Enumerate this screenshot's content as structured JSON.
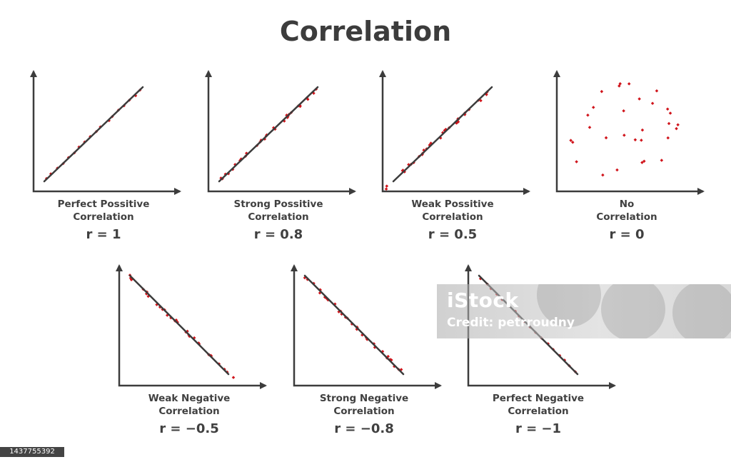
{
  "title": "Correlation",
  "chart_data": [
    {
      "type": "scatter",
      "title": "Perfect Possitive Correlation",
      "caption": [
        "Perfect Possitive",
        "Correlation"
      ],
      "r_label": "r = 1",
      "r": 1
    },
    {
      "type": "scatter",
      "title": "Strong Possitive Correlation",
      "caption": [
        "Strong Possitive",
        "Correlation"
      ],
      "r_label": "r = 0.8",
      "r": 0.8
    },
    {
      "type": "scatter",
      "title": "Weak Possitive Correlation",
      "caption": [
        "Weak Possitive",
        "Correlation"
      ],
      "r_label": "r = 0.5",
      "r": 0.5
    },
    {
      "type": "scatter",
      "title": "No Correlation",
      "caption": [
        "No",
        "Correlation"
      ],
      "r_label": "r = 0",
      "r": 0
    },
    {
      "type": "scatter",
      "title": "Weak Negative Correlation",
      "caption": [
        "Weak Negative",
        "Correlation"
      ],
      "r_label": "r = −0.5",
      "r": -0.5
    },
    {
      "type": "scatter",
      "title": "Strong Negative Correlation",
      "caption": [
        "Strong Negative",
        "Correlation"
      ],
      "r_label": "r = −0.8",
      "r": -0.8
    },
    {
      "type": "scatter",
      "title": "Perfect Negative Correlation",
      "caption": [
        "Perfect Negative",
        "Correlation"
      ],
      "r_label": "r = −1",
      "r": -1
    }
  ],
  "colors": {
    "points": "#d0141b",
    "lines": "#3c3c3c",
    "text": "#404040"
  },
  "watermark": {
    "brand": "iStock",
    "credit": "Credit: petrroudny"
  },
  "image_id": "1437755392"
}
